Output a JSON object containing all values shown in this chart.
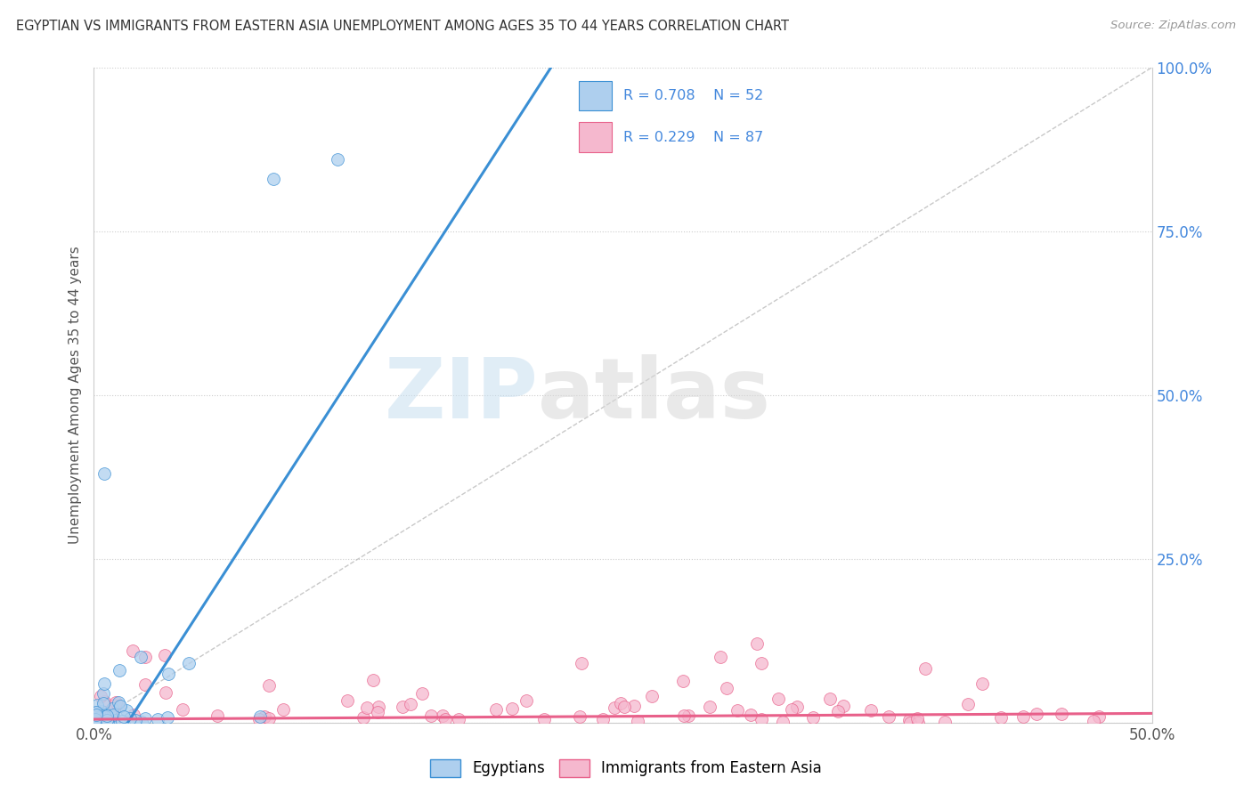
{
  "title": "EGYPTIAN VS IMMIGRANTS FROM EASTERN ASIA UNEMPLOYMENT AMONG AGES 35 TO 44 YEARS CORRELATION CHART",
  "source": "Source: ZipAtlas.com",
  "xlim": [
    0,
    0.5
  ],
  "ylim": [
    0,
    1.0
  ],
  "watermark": "ZIPatlas",
  "legend_label_1": "Egyptians",
  "legend_label_2": "Immigrants from Eastern Asia",
  "legend_r1": "R = 0.708",
  "legend_n1": "N = 52",
  "legend_r2": "R = 0.229",
  "legend_n2": "N = 87",
  "color_egyptian": "#aecfee",
  "color_eastern_asia": "#f5b8ce",
  "color_line_egyptian": "#3a8fd4",
  "color_line_eastern_asia": "#e8608a",
  "background": "#ffffff",
  "grid_color": "#cccccc",
  "title_color": "#333333",
  "source_color": "#999999",
  "legend_text_color": "#4488dd",
  "ylabel": "Unemployment Among Ages 35 to 44 years",
  "egy_slope": 5.0,
  "egy_intercept": -0.08,
  "ea_slope": 0.018,
  "ea_intercept": 0.005
}
